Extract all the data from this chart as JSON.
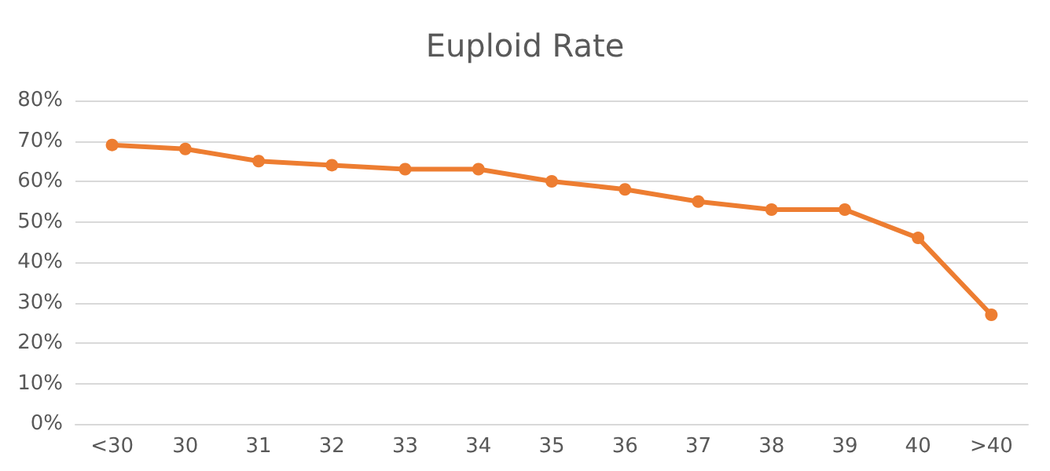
{
  "chart_data": {
    "type": "line",
    "title": "Euploid Rate",
    "categories": [
      "<30",
      "30",
      "31",
      "32",
      "33",
      "34",
      "35",
      "36",
      "37",
      "38",
      "39",
      "40",
      ">40"
    ],
    "series": [
      {
        "color": "#ed7d31",
        "values": [
          69,
          68,
          65,
          64,
          63,
          63,
          60,
          58,
          55,
          53,
          53,
          46,
          27
        ]
      }
    ],
    "ylim": [
      0,
      80
    ],
    "yticks": [
      {
        "value": 0,
        "label": "0%"
      },
      {
        "value": 10,
        "label": "10%"
      },
      {
        "value": 20,
        "label": "20%"
      },
      {
        "value": 30,
        "label": "30%"
      },
      {
        "value": 40,
        "label": "40%"
      },
      {
        "value": 50,
        "label": "50%"
      },
      {
        "value": 60,
        "label": "60%"
      },
      {
        "value": 70,
        "label": "70%"
      },
      {
        "value": 80,
        "label": "80%"
      }
    ],
    "grid": "y",
    "marker": "circle",
    "line_style": "solid"
  }
}
